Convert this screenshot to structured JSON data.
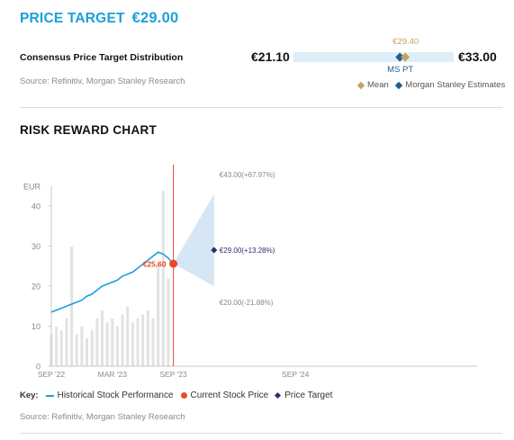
{
  "price_target": {
    "heading": "PRICE TARGET",
    "value": "€29.00"
  },
  "distribution": {
    "label": "Consensus Price Target Distribution",
    "low_label": "€21.10",
    "high_label": "€33.00",
    "mean_label": "€29.40",
    "mspt_label": "MS PT",
    "low": 21.1,
    "high": 33.0,
    "mean": 29.4,
    "ms_estimate": 29.0,
    "legend": [
      "Mean",
      "Morgan Stanley Estimates"
    ],
    "colors": {
      "mean": "#c8a25a",
      "ms": "#1f5f8f",
      "bar": "#deeef8"
    }
  },
  "source_1": "Source: Refinitiv, Morgan Stanley Research",
  "risk_reward_title": "RISK REWARD CHART",
  "chart_data": {
    "type": "line",
    "ylabel": "EUR",
    "ylim": [
      0,
      45
    ],
    "yticks": [
      0,
      10,
      20,
      30,
      40
    ],
    "x_tick_labels": [
      "SEP '22",
      "MAR '23",
      "SEP '23",
      "SEP '24"
    ],
    "x_ticks_months": [
      0,
      6,
      12,
      24
    ],
    "xlim_months": [
      0,
      48
    ],
    "series": [
      {
        "name": "Historical Stock Performance",
        "x_months": [
          0,
          0.5,
          1,
          1.5,
          2,
          2.5,
          3,
          3.5,
          4,
          4.5,
          5,
          5.5,
          6,
          6.5,
          7,
          7.5,
          8,
          8.5,
          9,
          9.5,
          10,
          10.5,
          11,
          11.5,
          12
        ],
        "values": [
          13.5,
          14.0,
          14.5,
          15.0,
          15.5,
          16.0,
          16.5,
          17.5,
          18.0,
          19.0,
          20.0,
          20.5,
          21.0,
          21.5,
          22.5,
          23.0,
          23.5,
          24.5,
          25.5,
          26.5,
          27.5,
          28.5,
          28.0,
          27.0,
          25.6
        ]
      }
    ],
    "volume_months": [
      0,
      0.5,
      1,
      1.5,
      2,
      2.5,
      3,
      3.5,
      4,
      4.5,
      5,
      5.5,
      6,
      6.5,
      7,
      7.5,
      8,
      8.5,
      9,
      9.5,
      10,
      10.5,
      11,
      11.5
    ],
    "volume_values": [
      8,
      10,
      9,
      12,
      30,
      8,
      10,
      7,
      9,
      12,
      14,
      11,
      12,
      10,
      13,
      15,
      11,
      12,
      13,
      14,
      12,
      26,
      44,
      22
    ],
    "current_price": {
      "month": 12,
      "value": 25.6,
      "label": "€25.60"
    },
    "projection": {
      "month_start": 12,
      "month_end": 16,
      "bull": {
        "value": 43.0,
        "label": "€43.00(+67.97%)"
      },
      "base": {
        "value": 29.0,
        "label": "€29.00(+13.28%)"
      },
      "bear": {
        "value": 20.0,
        "label": "€20.00(-21.88%)"
      }
    },
    "colors": {
      "line": "#1d9fd8",
      "current": "#e8492a",
      "target": "#2b2f6b",
      "cone": "#d6e6f4",
      "volume": "#e2e2e2",
      "axis": "#c8c8c8",
      "label": "#888888"
    }
  },
  "key": {
    "title": "Key:",
    "items": [
      "Historical Stock Performance",
      "Current Stock Price",
      "Price Target"
    ]
  },
  "source_2": "Source: Refinitiv, Morgan Stanley Research"
}
